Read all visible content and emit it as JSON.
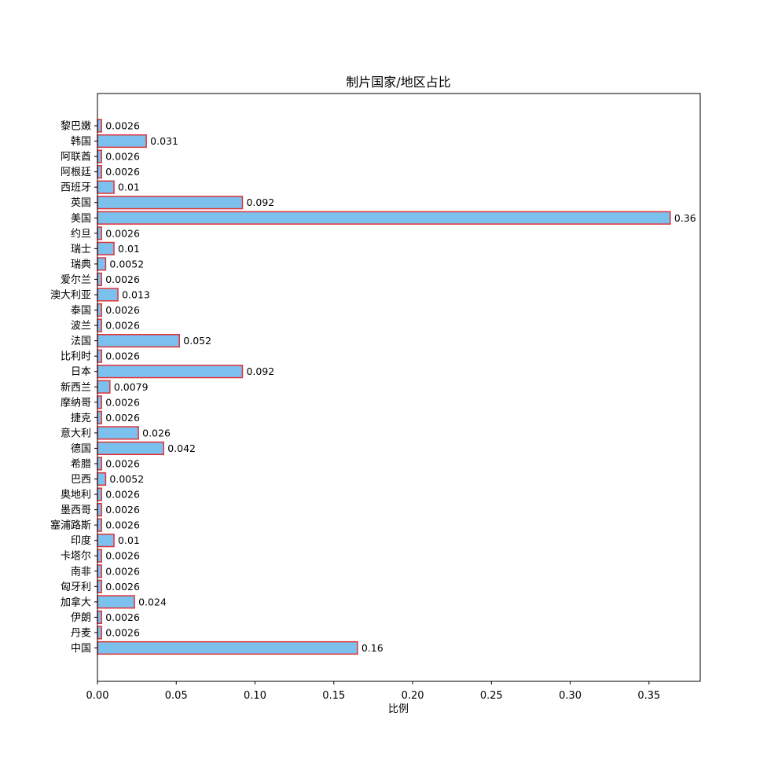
{
  "chart_data": {
    "type": "bar",
    "orientation": "horizontal",
    "title": "制片国家/地区占比",
    "xlabel": "比例",
    "ylabel": "",
    "xlim": [
      0,
      0.3825
    ],
    "xticks": [
      "0.00",
      "0.05",
      "0.10",
      "0.15",
      "0.20",
      "0.25",
      "0.30",
      "0.35"
    ],
    "categories": [
      "中国",
      "丹麦",
      "伊朗",
      "加拿大",
      "匈牙利",
      "南非",
      "卡塔尔",
      "印度",
      "塞浦路斯",
      "墨西哥",
      "奥地利",
      "巴西",
      "希腊",
      "德国",
      "意大利",
      "捷克",
      "摩纳哥",
      "新西兰",
      "日本",
      "比利时",
      "法国",
      "波兰",
      "泰国",
      "澳大利亚",
      "爱尔兰",
      "瑞典",
      "瑞士",
      "约旦",
      "美国",
      "英国",
      "西班牙",
      "阿根廷",
      "阿联酋",
      "韩国",
      "黎巴嫩"
    ],
    "values": [
      0.165,
      0.0026,
      0.0026,
      0.0235,
      0.0026,
      0.0026,
      0.0026,
      0.0105,
      0.0026,
      0.0026,
      0.0026,
      0.0052,
      0.0026,
      0.042,
      0.026,
      0.0026,
      0.0026,
      0.0079,
      0.092,
      0.0026,
      0.052,
      0.0026,
      0.0026,
      0.013,
      0.0026,
      0.0052,
      0.0105,
      0.0026,
      0.3635,
      0.092,
      0.0105,
      0.0026,
      0.0026,
      0.031,
      0.0026
    ],
    "labels": [
      "0.16",
      "0.0026",
      "0.0026",
      "0.024",
      "0.0026",
      "0.0026",
      "0.0026",
      "0.01",
      "0.0026",
      "0.0026",
      "0.0026",
      "0.0052",
      "0.0026",
      "0.042",
      "0.026",
      "0.0026",
      "0.0026",
      "0.0079",
      "0.092",
      "0.0026",
      "0.052",
      "0.0026",
      "0.0026",
      "0.013",
      "0.0026",
      "0.0052",
      "0.01",
      "0.0026",
      "0.36",
      "0.092",
      "0.01",
      "0.0026",
      "0.0026",
      "0.031",
      "0.0026"
    ],
    "bar_color": "#7cc1ee",
    "edge_color": "#e0333a",
    "grid": false,
    "legend": "none"
  }
}
